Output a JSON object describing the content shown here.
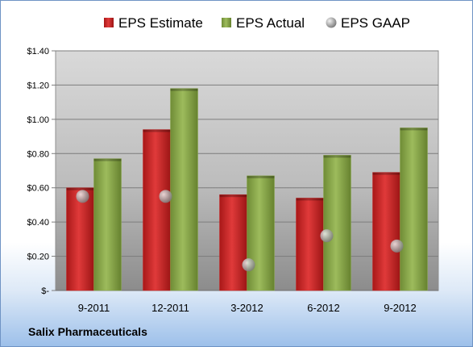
{
  "company_label": "Salix Pharmaceuticals",
  "chart_data": {
    "type": "bar",
    "categories": [
      "9-2011",
      "12-2011",
      "3-2012",
      "6-2012",
      "9-2012"
    ],
    "series": [
      {
        "name": "EPS Estimate",
        "kind": "bar",
        "color": "#cc2727",
        "values": [
          0.6,
          0.94,
          0.56,
          0.54,
          0.69
        ]
      },
      {
        "name": "EPS Actual",
        "kind": "bar",
        "color": "#8aa94a",
        "values": [
          0.77,
          1.18,
          0.67,
          0.79,
          0.95
        ]
      },
      {
        "name": "EPS GAAP",
        "kind": "point",
        "color": "#a9a9a9",
        "values": [
          0.55,
          0.55,
          0.15,
          0.32,
          0.26
        ]
      }
    ],
    "yticks": [
      "$-",
      "$0.20",
      "$0.40",
      "$0.60",
      "$0.80",
      "$1.00",
      "$1.20",
      "$1.40"
    ],
    "ylim": [
      0,
      1.4
    ],
    "legend_position": "top",
    "grid": true
  }
}
